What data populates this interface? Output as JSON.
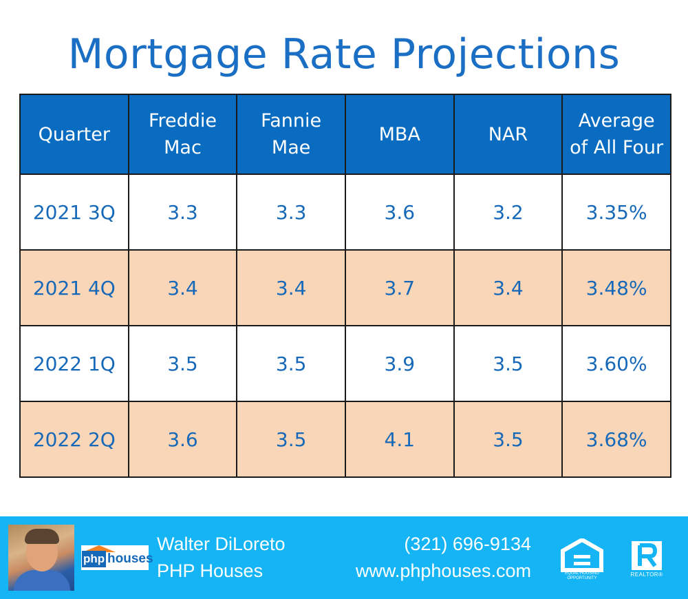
{
  "title": "Mortgage Rate Projections",
  "chart_data": {
    "type": "table",
    "columns": [
      "Quarter",
      "Freddie Mac",
      "Fannie Mae",
      "MBA",
      "NAR",
      "Average of All Four"
    ],
    "header_lines": [
      [
        "Quarter"
      ],
      [
        "Freddie",
        "Mac"
      ],
      [
        "Fannie",
        "Mae"
      ],
      [
        "MBA"
      ],
      [
        "NAR"
      ],
      [
        "Average",
        "of All Four"
      ]
    ],
    "rows": [
      [
        "2021 3Q",
        "3.3",
        "3.3",
        "3.6",
        "3.2",
        "3.35%"
      ],
      [
        "2021 4Q",
        "3.4",
        "3.4",
        "3.7",
        "3.4",
        "3.48%"
      ],
      [
        "2022 1Q",
        "3.5",
        "3.5",
        "3.9",
        "3.5",
        "3.60%"
      ],
      [
        "2022 2Q",
        "3.6",
        "3.5",
        "4.1",
        "3.5",
        "3.68%"
      ]
    ]
  },
  "footer": {
    "logo_php": "php",
    "logo_houses": "houses",
    "agent_name": "Walter DiLoreto",
    "company": "PHP Houses",
    "phone": "(321) 696-9134",
    "website": "www.phphouses.com",
    "eho_caption_line1": "EQUAL HOUSING",
    "eho_caption_line2": "OPPORTUNITY",
    "realtor_caption": "REALTOR®",
    "icons": [
      "agent-photo",
      "equal-housing-icon",
      "realtor-icon"
    ]
  },
  "colors": {
    "title": "#1a6fc4",
    "header_bg": "#0a6cc0",
    "row_alt_bg": "#f9d6b8",
    "cell_text": "#1668b8",
    "footer_bg": "#14b4f5"
  }
}
